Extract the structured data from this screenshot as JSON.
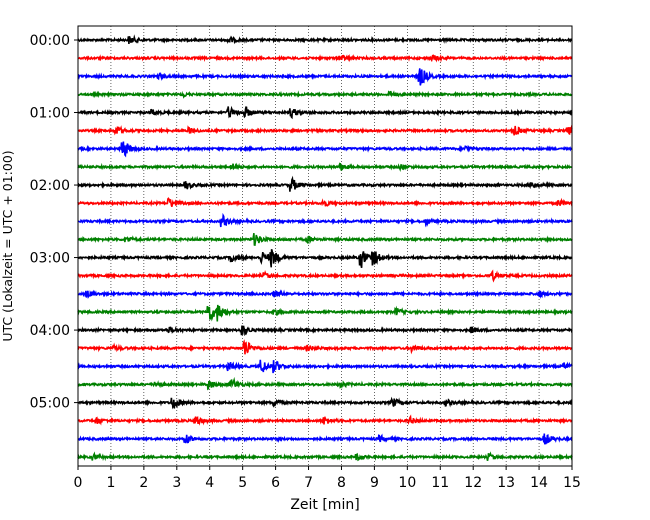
{
  "chart_data": {
    "type": "line",
    "subtype": "seismogram-helicorder",
    "xlabel": "Zeit  [min]",
    "ylabel": "UTC (Lokalzeit = UTC + 01:00)",
    "xlim": [
      0,
      15
    ],
    "x_ticks": [
      "0",
      "1",
      "2",
      "3",
      "4",
      "5",
      "6",
      "7",
      "8",
      "9",
      "10",
      "11",
      "12",
      "13",
      "14",
      "15"
    ],
    "y_tick_labels": [
      "00:00",
      "01:00",
      "02:00",
      "03:00",
      "04:00",
      "05:00"
    ],
    "grid": "vertical-dotted",
    "trace_minutes": 15,
    "trace_colors": [
      "#000000",
      "#ff0000",
      "#0000ff",
      "#008000"
    ],
    "traces": [
      {
        "start": "00:00",
        "events": [
          [
            1.6,
            0.7
          ],
          [
            4.6,
            0.6
          ]
        ]
      },
      {
        "start": "00:15",
        "events": [
          [
            8.0,
            0.5
          ],
          [
            10.8,
            0.5
          ]
        ]
      },
      {
        "start": "00:30",
        "events": [
          [
            10.4,
            2.0
          ],
          [
            2.5,
            0.4
          ]
        ]
      },
      {
        "start": "00:45",
        "events": [
          [
            3.2,
            0.4
          ],
          [
            9.5,
            0.5
          ]
        ]
      },
      {
        "start": "01:00",
        "events": [
          [
            4.6,
            1.0
          ],
          [
            5.1,
            0.9
          ],
          [
            6.5,
            0.9
          ],
          [
            2.3,
            0.5
          ]
        ]
      },
      {
        "start": "01:15",
        "events": [
          [
            1.2,
            0.8
          ],
          [
            3.4,
            0.5
          ],
          [
            13.3,
            0.8
          ],
          [
            14.9,
            0.7
          ]
        ]
      },
      {
        "start": "01:30",
        "events": [
          [
            1.4,
            1.7
          ],
          [
            11.8,
            0.5
          ]
        ]
      },
      {
        "start": "01:45",
        "events": [
          [
            4.7,
            0.5
          ],
          [
            8.0,
            0.6
          ],
          [
            9.8,
            0.5
          ]
        ]
      },
      {
        "start": "02:00",
        "events": [
          [
            3.3,
            0.7
          ],
          [
            6.5,
            1.3
          ],
          [
            13.8,
            0.6
          ]
        ]
      },
      {
        "start": "02:15",
        "events": [
          [
            2.8,
            0.9
          ],
          [
            7.5,
            0.5
          ],
          [
            14.6,
            0.6
          ]
        ]
      },
      {
        "start": "02:30",
        "events": [
          [
            4.4,
            1.1
          ],
          [
            10.6,
            0.5
          ]
        ]
      },
      {
        "start": "02:45",
        "events": [
          [
            5.4,
            1.1
          ],
          [
            1.5,
            0.5
          ],
          [
            7.0,
            0.5
          ]
        ]
      },
      {
        "start": "03:00",
        "events": [
          [
            8.6,
            2.0
          ],
          [
            9.0,
            1.3
          ],
          [
            5.9,
            1.6
          ],
          [
            5.6,
            1.1
          ],
          [
            4.7,
            0.8
          ]
        ]
      },
      {
        "start": "03:15",
        "events": [
          [
            12.6,
            0.8
          ],
          [
            5.7,
            0.5
          ]
        ]
      },
      {
        "start": "03:30",
        "events": [
          [
            0.3,
            0.6
          ],
          [
            6.0,
            0.5
          ],
          [
            14.0,
            0.5
          ]
        ]
      },
      {
        "start": "03:45",
        "events": [
          [
            4.0,
            1.9
          ],
          [
            4.3,
            1.4
          ],
          [
            6.0,
            0.5
          ],
          [
            9.7,
            0.6
          ]
        ]
      },
      {
        "start": "04:00",
        "events": [
          [
            5.0,
            1.1
          ],
          [
            2.8,
            0.5
          ],
          [
            12.0,
            0.5
          ]
        ]
      },
      {
        "start": "04:15",
        "events": [
          [
            5.1,
            1.6
          ],
          [
            7.0,
            0.5
          ],
          [
            10.2,
            0.6
          ],
          [
            1.1,
            0.4
          ]
        ]
      },
      {
        "start": "04:30",
        "events": [
          [
            5.6,
            1.3
          ],
          [
            6.0,
            1.0
          ],
          [
            4.6,
            0.8
          ],
          [
            14.8,
            0.6
          ]
        ]
      },
      {
        "start": "04:45",
        "events": [
          [
            4.7,
            1.0
          ],
          [
            4.0,
            0.9
          ],
          [
            2.4,
            0.6
          ],
          [
            8.0,
            0.5
          ]
        ]
      },
      {
        "start": "05:00",
        "events": [
          [
            2.9,
            1.2
          ],
          [
            6.0,
            0.6
          ],
          [
            9.6,
            0.7
          ],
          [
            11.2,
            0.5
          ]
        ]
      },
      {
        "start": "05:15",
        "events": [
          [
            3.6,
            0.9
          ],
          [
            7.5,
            0.7
          ],
          [
            10.1,
            0.6
          ],
          [
            0.6,
            0.5
          ]
        ]
      },
      {
        "start": "05:30",
        "events": [
          [
            3.3,
            0.7
          ],
          [
            14.2,
            1.0
          ],
          [
            9.2,
            0.5
          ]
        ]
      },
      {
        "start": "05:45",
        "events": [
          [
            0.5,
            0.5
          ],
          [
            8.5,
            0.5
          ],
          [
            12.5,
            0.6
          ]
        ]
      }
    ]
  }
}
